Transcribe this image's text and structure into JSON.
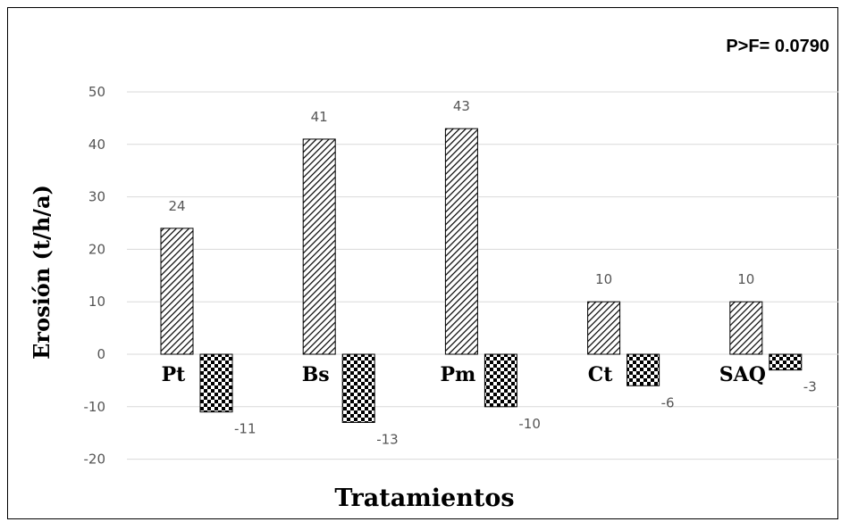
{
  "chart_data": {
    "type": "bar",
    "categories": [
      "Pt",
      "Bs",
      "Pm",
      "Ct",
      "SAQ"
    ],
    "series": [
      {
        "values": [
          24,
          41,
          43,
          10,
          10
        ],
        "data_labels": [
          "24",
          "41",
          "43",
          "10",
          "10"
        ]
      },
      {
        "values": [
          -11,
          -13,
          -10,
          -6,
          -3
        ],
        "data_labels": [
          "-11",
          "-13",
          "-10",
          "-6",
          "-3"
        ]
      }
    ],
    "yticks": [
      "50",
      "40",
      "30",
      "20",
      "10",
      "0",
      "-10",
      "-20"
    ],
    "ylim": [
      -20,
      50
    ],
    "xlabel": "Tratamientos",
    "ylabel": "Erosión (t/h/a)",
    "annotation": "P>F= 0.0790",
    "grid": true
  }
}
